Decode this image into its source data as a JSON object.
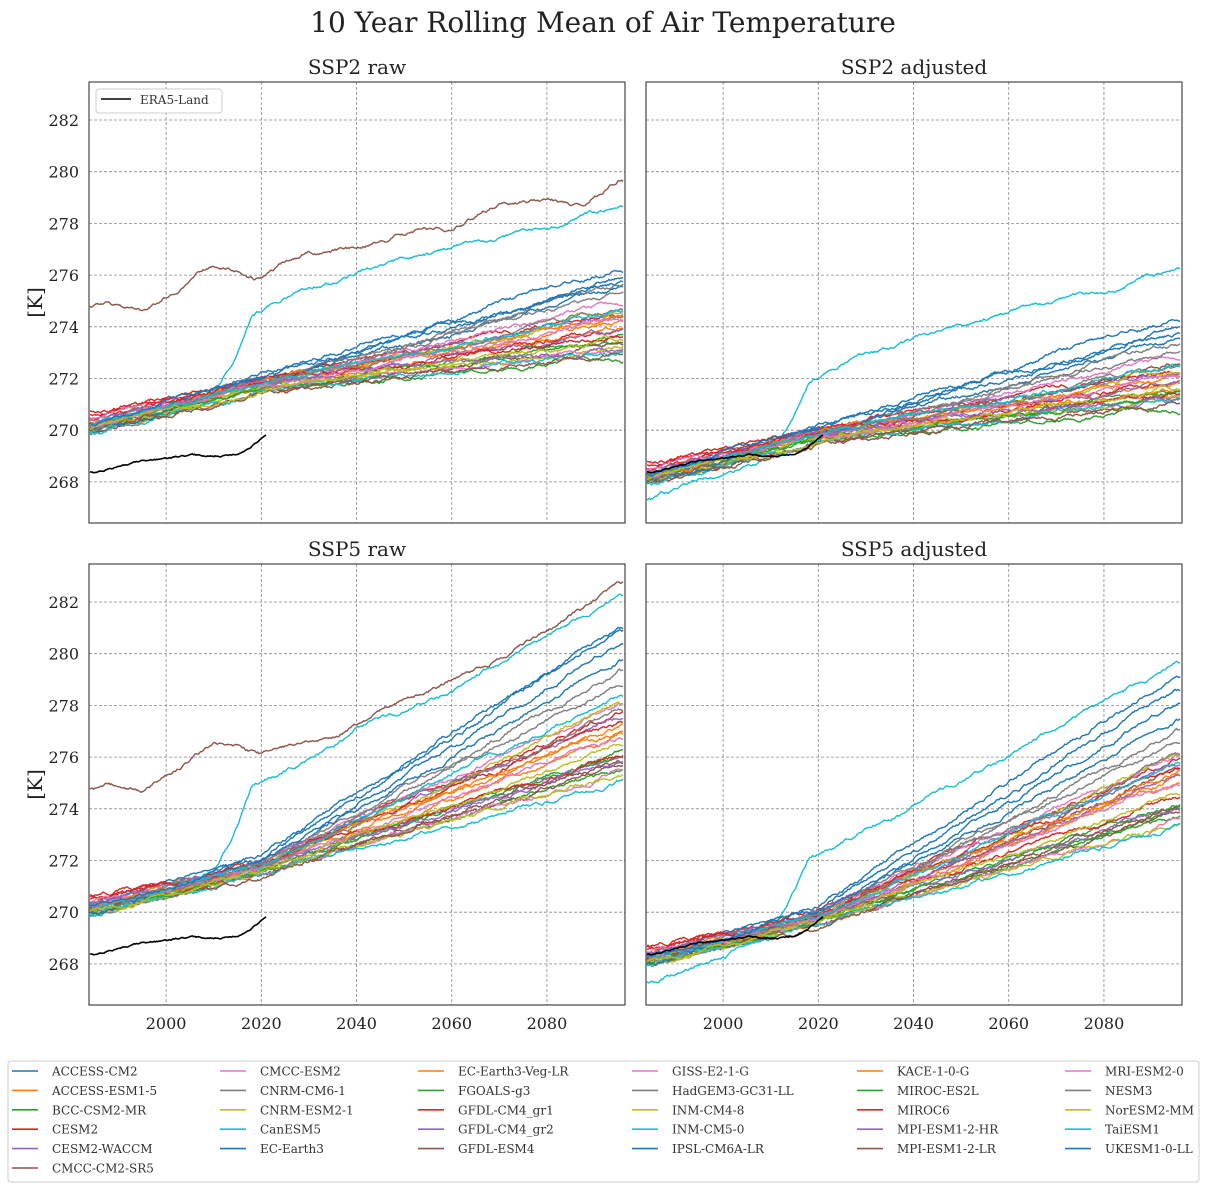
{
  "chart_data": {
    "type": "line",
    "title": "10 Year Rolling Mean of Air Temperature",
    "ylabel": "[K]",
    "xlim": [
      1983.8,
      2096.4
    ],
    "ylim": [
      266.41,
      283.47
    ],
    "xticks": [
      2000,
      2020,
      2040,
      2060,
      2080
    ],
    "yticks": [
      268,
      270,
      272,
      274,
      276,
      278,
      280,
      282
    ],
    "grid": true,
    "default_years": [
      1985,
      2020,
      2095
    ],
    "panels": [
      {
        "key": "ssp2_raw",
        "title": "SSP2 raw"
      },
      {
        "key": "ssp2_adj",
        "title": "SSP2 adjusted"
      },
      {
        "key": "ssp5_raw",
        "title": "SSP5 raw"
      },
      {
        "key": "ssp5_adj",
        "title": "SSP5 adjusted"
      }
    ],
    "observed": {
      "name": "ERA5-Land",
      "color": "#000000",
      "legend_position": "upper-left of SSP2 raw",
      "raw": {
        "x": [
          1985,
          1990,
          1995,
          2000,
          2005,
          2010,
          2015,
          2018,
          2021
        ],
        "y": [
          268.4,
          268.6,
          268.8,
          268.9,
          269.0,
          269.0,
          269.1,
          269.4,
          269.8
        ]
      },
      "adj": {
        "x": [
          1985,
          1990,
          1995,
          2000,
          2005,
          2010,
          2015,
          2018,
          2021
        ],
        "y": [
          268.4,
          268.6,
          268.8,
          268.9,
          269.0,
          269.0,
          269.1,
          269.4,
          269.8
        ]
      }
    },
    "legend_position": "bottom",
    "series": [
      {
        "name": "ACCESS-CM2",
        "color": "#1f77b4",
        "ssp2_raw": [
          270.1,
          271.7,
          275.5
        ],
        "ssp2_adj": [
          268.15,
          269.75,
          273.5
        ],
        "ssp5_raw": [
          270.1,
          271.7,
          279.8
        ],
        "ssp5_adj": [
          268.15,
          269.75,
          277.5
        ]
      },
      {
        "name": "ACCESS-ESM1-5",
        "color": "#ff7f0e",
        "ssp2_raw": [
          270.3,
          271.9,
          274.2
        ],
        "ssp2_adj": [
          268.35,
          269.95,
          271.8
        ],
        "ssp5_raw": [
          270.3,
          271.9,
          277.0
        ],
        "ssp5_adj": [
          268.35,
          269.95,
          275.0
        ]
      },
      {
        "name": "BCC-CSM2-MR",
        "color": "#2ca02c",
        "ssp2_raw": [
          270.0,
          271.6,
          273.4
        ],
        "ssp2_adj": [
          268.05,
          269.65,
          271.5
        ],
        "ssp5_raw": [
          270.0,
          271.6,
          276.2
        ],
        "ssp5_adj": [
          268.05,
          269.65,
          274.0
        ]
      },
      {
        "name": "CESM2",
        "color": "#d62728",
        "ssp2_raw": [
          270.6,
          272.0,
          274.6
        ],
        "ssp2_adj": [
          268.65,
          270.1,
          272.4
        ],
        "ssp5_raw": [
          270.6,
          272.0,
          277.8
        ],
        "ssp5_adj": [
          268.65,
          270.1,
          276.0
        ]
      },
      {
        "name": "CESM2-WACCM",
        "color": "#9467bd",
        "ssp2_raw": [
          270.4,
          272.0,
          274.4
        ],
        "ssp2_adj": [
          268.45,
          270.05,
          272.2
        ],
        "ssp5_raw": [
          270.4,
          272.0,
          277.5
        ],
        "ssp5_adj": [
          268.45,
          270.05,
          275.7
        ]
      },
      {
        "name": "CMCC-CM2-SR5",
        "color": "#8c564b",
        "ssp2_raw": {
          "x": [
            1985,
            1988,
            1995,
            2002,
            2010,
            2015,
            2020,
            2030,
            2040,
            2050,
            2060,
            2070,
            2080,
            2088,
            2095
          ],
          "y": [
            274.8,
            275.0,
            274.7,
            275.5,
            276.4,
            276.3,
            276.0,
            276.9,
            277.0,
            277.6,
            277.8,
            278.8,
            279.0,
            278.6,
            279.6
          ]
        },
        "ssp2_adj": [
          268.0,
          269.6,
          272.5
        ],
        "ssp5_raw": {
          "x": [
            1985,
            1988,
            1995,
            2002,
            2010,
            2015,
            2020,
            2030,
            2040,
            2050,
            2060,
            2070,
            2080,
            2088,
            2095
          ],
          "y": [
            274.8,
            275.0,
            274.7,
            275.5,
            276.5,
            276.3,
            276.0,
            276.6,
            277.3,
            278.2,
            279.0,
            279.8,
            281.0,
            281.8,
            282.7
          ]
        },
        "ssp5_adj": [
          268.0,
          269.6,
          275.5
        ]
      },
      {
        "name": "CMCC-ESM2",
        "color": "#e377c2",
        "ssp2_raw": [
          270.2,
          271.8,
          274.9
        ],
        "ssp2_adj": [
          268.25,
          269.85,
          272.8
        ],
        "ssp5_raw": [
          270.2,
          271.8,
          278.2
        ],
        "ssp5_adj": [
          268.25,
          269.85,
          276.2
        ]
      },
      {
        "name": "CNRM-CM6-1",
        "color": "#7f7f7f",
        "ssp2_raw": [
          269.8,
          271.8,
          275.6
        ],
        "ssp2_adj": [
          267.9,
          269.8,
          273.3
        ],
        "ssp5_raw": [
          269.8,
          271.8,
          279.2
        ],
        "ssp5_adj": [
          267.9,
          269.8,
          276.9
        ]
      },
      {
        "name": "CNRM-ESM2-1",
        "color": "#bcbd22",
        "ssp2_raw": [
          270.0,
          271.6,
          274.6
        ],
        "ssp2_adj": [
          268.05,
          269.65,
          272.3
        ],
        "ssp5_raw": [
          270.0,
          271.6,
          278.0
        ],
        "ssp5_adj": [
          268.05,
          269.65,
          276.0
        ]
      },
      {
        "name": "CanESM5",
        "color": "#17becf",
        "ssp2_raw": {
          "x": [
            1985,
            2000,
            2010,
            2014,
            2018,
            2022,
            2030,
            2040,
            2050,
            2060,
            2070,
            2080,
            2095
          ],
          "y": [
            269.9,
            270.8,
            271.5,
            272.6,
            274.4,
            274.9,
            275.5,
            276.0,
            276.6,
            277.0,
            277.3,
            277.9,
            278.6
          ]
        },
        "ssp2_adj": {
          "x": [
            1985,
            2000,
            2010,
            2014,
            2018,
            2022,
            2030,
            2040,
            2050,
            2060,
            2070,
            2080,
            2095
          ],
          "y": [
            267.3,
            268.3,
            269.0,
            270.3,
            271.8,
            272.3,
            273.0,
            273.5,
            274.0,
            274.5,
            274.9,
            275.4,
            276.2
          ]
        },
        "ssp5_raw": {
          "x": [
            1985,
            2000,
            2010,
            2014,
            2018,
            2022,
            2030,
            2040,
            2050,
            2060,
            2070,
            2080,
            2095
          ],
          "y": [
            269.9,
            270.8,
            271.5,
            272.8,
            274.8,
            275.2,
            275.9,
            277.0,
            277.7,
            278.5,
            279.5,
            280.5,
            282.3
          ]
        },
        "ssp5_adj": {
          "x": [
            1985,
            2000,
            2010,
            2014,
            2018,
            2022,
            2030,
            2040,
            2050,
            2060,
            2070,
            2080,
            2095
          ],
          "y": [
            267.3,
            268.3,
            269.0,
            270.4,
            272.0,
            272.4,
            273.2,
            274.0,
            275.0,
            276.0,
            277.0,
            278.0,
            279.7
          ]
        }
      },
      {
        "name": "EC-Earth3",
        "color": "#1f77b4",
        "ssp2_raw": [
          270.2,
          272.2,
          276.2
        ],
        "ssp2_adj": [
          268.25,
          270.2,
          274.3
        ],
        "ssp5_raw": [
          270.2,
          272.2,
          281.0
        ],
        "ssp5_adj": [
          268.25,
          270.2,
          279.2
        ]
      },
      {
        "name": "EC-Earth3-Veg-LR",
        "color": "#ff7f0e",
        "ssp2_raw": [
          270.3,
          271.5,
          274.0
        ],
        "ssp2_adj": [
          268.35,
          269.6,
          271.6
        ],
        "ssp5_raw": [
          270.3,
          271.5,
          276.8
        ],
        "ssp5_adj": [
          268.35,
          269.6,
          275.2
        ]
      },
      {
        "name": "FGOALS-g3",
        "color": "#2ca02c",
        "ssp2_raw": [
          270.1,
          271.5,
          272.7
        ],
        "ssp2_adj": [
          268.15,
          269.6,
          270.7
        ],
        "ssp5_raw": [
          270.1,
          271.5,
          275.5
        ],
        "ssp5_adj": [
          268.15,
          269.6,
          273.7
        ]
      },
      {
        "name": "GFDL-CM4_gr1",
        "color": "#d62728",
        "ssp2_raw": [
          270.5,
          271.9,
          273.9
        ],
        "ssp2_adj": [
          268.55,
          269.95,
          271.9
        ],
        "ssp5_raw": [
          270.5,
          271.9,
          277.3
        ],
        "ssp5_adj": [
          268.55,
          269.95,
          275.5
        ]
      },
      {
        "name": "GFDL-CM4_gr2",
        "color": "#9467bd",
        "ssp2_raw": [
          270.3,
          271.7,
          273.8
        ],
        "ssp2_adj": [
          268.35,
          269.75,
          271.8
        ],
        "ssp5_raw": [
          270.3,
          271.7,
          276.0
        ],
        "ssp5_adj": [
          268.35,
          269.75,
          275.3
        ]
      },
      {
        "name": "GFDL-ESM4",
        "color": "#8c564b",
        "ssp2_raw": [
          270.0,
          271.5,
          273.3
        ],
        "ssp2_adj": [
          268.05,
          269.55,
          271.2
        ],
        "ssp5_raw": [
          270.0,
          271.5,
          275.6
        ],
        "ssp5_adj": [
          268.05,
          269.55,
          273.8
        ]
      },
      {
        "name": "GISS-E2-1-G",
        "color": "#e377c2",
        "ssp2_raw": [
          270.4,
          271.6,
          273.1
        ],
        "ssp2_adj": [
          268.45,
          269.65,
          271.4
        ],
        "ssp5_raw": [
          270.4,
          271.6,
          275.4
        ],
        "ssp5_adj": [
          268.45,
          269.65,
          273.5
        ]
      },
      {
        "name": "HadGEM3-GC31-LL",
        "color": "#7f7f7f",
        "ssp2_raw": [
          270.1,
          271.9,
          275.3
        ],
        "ssp2_adj": [
          268.15,
          269.95,
          273.0
        ],
        "ssp5_raw": [
          270.1,
          271.9,
          278.9
        ],
        "ssp5_adj": [
          268.15,
          269.95,
          276.7
        ]
      },
      {
        "name": "INM-CM4-8",
        "color": "#bcbd22",
        "ssp2_raw": [
          270.0,
          271.6,
          273.2
        ],
        "ssp2_adj": [
          268.05,
          269.65,
          271.3
        ],
        "ssp5_raw": [
          270.0,
          271.6,
          275.3
        ],
        "ssp5_adj": [
          268.05,
          269.65,
          273.4
        ]
      },
      {
        "name": "INM-CM5-0",
        "color": "#17becf",
        "ssp2_raw": [
          269.9,
          271.5,
          273.0
        ],
        "ssp2_adj": [
          267.95,
          269.55,
          271.2
        ],
        "ssp5_raw": [
          269.9,
          271.5,
          275.0
        ],
        "ssp5_adj": [
          267.95,
          269.55,
          273.3
        ]
      },
      {
        "name": "IPSL-CM6A-LR",
        "color": "#1f77b4",
        "ssp2_raw": [
          270.0,
          272.0,
          275.8
        ],
        "ssp2_adj": [
          268.05,
          270.0,
          273.8
        ],
        "ssp5_raw": [
          270.0,
          272.0,
          280.3
        ],
        "ssp5_adj": [
          268.05,
          270.0,
          278.0
        ]
      },
      {
        "name": "KACE-1-0-G",
        "color": "#ff7f0e",
        "ssp2_raw": [
          270.2,
          271.8,
          274.3
        ],
        "ssp2_adj": [
          268.25,
          269.85,
          272.0
        ],
        "ssp5_raw": [
          270.2,
          271.8,
          277.2
        ],
        "ssp5_adj": [
          268.25,
          269.85,
          275.4
        ]
      },
      {
        "name": "MIROC-ES2L",
        "color": "#2ca02c",
        "ssp2_raw": [
          270.2,
          271.6,
          273.6
        ],
        "ssp2_adj": [
          268.25,
          269.65,
          271.4
        ],
        "ssp5_raw": [
          270.2,
          271.6,
          276.1
        ],
        "ssp5_adj": [
          268.25,
          269.65,
          274.2
        ]
      },
      {
        "name": "MIROC6",
        "color": "#d62728",
        "ssp2_raw": [
          270.7,
          271.9,
          273.7
        ],
        "ssp2_adj": [
          268.75,
          269.95,
          271.5
        ],
        "ssp5_raw": [
          270.7,
          271.9,
          276.0
        ],
        "ssp5_adj": [
          268.75,
          269.95,
          274.4
        ]
      },
      {
        "name": "MPI-ESM1-2-HR",
        "color": "#9467bd",
        "ssp2_raw": [
          270.3,
          271.8,
          273.2
        ],
        "ssp2_adj": [
          268.35,
          269.85,
          271.3
        ],
        "ssp5_raw": [
          270.3,
          271.8,
          275.8
        ],
        "ssp5_adj": [
          268.35,
          269.85,
          274.0
        ]
      },
      {
        "name": "MPI-ESM1-2-LR",
        "color": "#8c564b",
        "ssp2_raw": [
          270.1,
          271.4,
          273.0
        ],
        "ssp2_adj": [
          268.15,
          269.45,
          271.1
        ],
        "ssp5_raw": [
          270.1,
          271.4,
          275.9
        ],
        "ssp5_adj": [
          268.15,
          269.45,
          274.1
        ]
      },
      {
        "name": "MRI-ESM2-0",
        "color": "#e377c2",
        "ssp2_raw": [
          270.2,
          271.7,
          274.2
        ],
        "ssp2_adj": [
          268.25,
          269.75,
          272.0
        ],
        "ssp5_raw": [
          270.2,
          271.7,
          276.8
        ],
        "ssp5_adj": [
          268.25,
          269.75,
          275.0
        ]
      },
      {
        "name": "NESM3",
        "color": "#7f7f7f",
        "ssp2_raw": [
          270.1,
          271.8,
          274.7
        ],
        "ssp2_adj": [
          268.15,
          269.85,
          272.5
        ],
        "ssp5_raw": [
          270.1,
          271.8,
          277.8
        ],
        "ssp5_adj": [
          268.15,
          269.85,
          276.1
        ]
      },
      {
        "name": "NorESM2-MM",
        "color": "#bcbd22",
        "ssp2_raw": [
          270.0,
          271.6,
          273.5
        ],
        "ssp2_adj": [
          268.05,
          269.65,
          271.6
        ],
        "ssp5_raw": [
          270.0,
          271.6,
          276.5
        ],
        "ssp5_adj": [
          268.05,
          269.65,
          274.6
        ]
      },
      {
        "name": "TaiESM1",
        "color": "#17becf",
        "ssp2_raw": [
          270.2,
          271.8,
          274.5
        ],
        "ssp2_adj": [
          268.25,
          269.85,
          272.4
        ],
        "ssp5_raw": [
          270.2,
          271.8,
          278.4
        ],
        "ssp5_adj": [
          268.25,
          269.85,
          275.8
        ]
      },
      {
        "name": "UKESM1-0-LL",
        "color": "#1f77b4",
        "ssp2_raw": [
          270.3,
          272.1,
          275.9
        ],
        "ssp2_adj": [
          268.35,
          270.15,
          274.0
        ],
        "ssp5_raw": [
          270.3,
          272.1,
          280.9
        ],
        "ssp5_adj": [
          268.35,
          270.15,
          278.5
        ]
      }
    ]
  }
}
